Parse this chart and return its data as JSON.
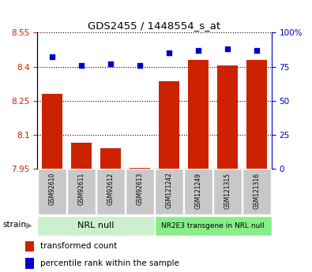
{
  "title": "GDS2455 / 1448554_s_at",
  "samples": [
    "GSM92610",
    "GSM92611",
    "GSM92612",
    "GSM92613",
    "GSM121242",
    "GSM121249",
    "GSM121315",
    "GSM121316"
  ],
  "transformed_counts": [
    8.28,
    8.065,
    8.04,
    7.952,
    8.335,
    8.43,
    8.405,
    8.43
  ],
  "percentile_ranks": [
    82,
    76,
    77,
    76,
    85,
    87,
    88,
    87
  ],
  "group1_label": "NRL null",
  "group2_label": "NR2E3 transgene in NRL null",
  "ylim_left": [
    7.95,
    8.55
  ],
  "ylim_right": [
    0,
    100
  ],
  "yticks_left": [
    7.95,
    8.1,
    8.25,
    8.4,
    8.55
  ],
  "yticks_right": [
    0,
    25,
    50,
    75,
    100
  ],
  "bar_color": "#cc2200",
  "dot_color": "#0000cc",
  "grid_color": "#000000",
  "tick_bg_color": "#c8c8c8",
  "group1_color": "#ccf0cc",
  "group2_color": "#88ee88",
  "strain_label": "strain",
  "legend_bar_label": "transformed count",
  "legend_dot_label": "percentile rank within the sample",
  "left_axis_color": "#cc2200",
  "right_axis_color": "#0000cc"
}
